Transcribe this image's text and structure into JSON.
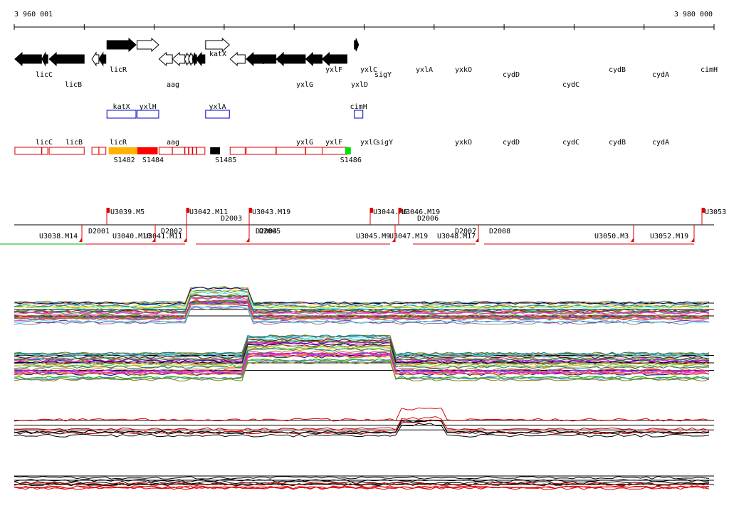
{
  "ruler": {
    "start_label": "3 960 001",
    "end_label": "3 980 000",
    "start_bp": 3960001,
    "end_bp": 3980000
  },
  "genes": [
    {
      "name": "licC",
      "strand": "-",
      "start": 3960020,
      "end": 3960780,
      "filled": true
    },
    {
      "name": "licB",
      "strand": "-",
      "start": 3960790,
      "end": 3960960,
      "filled": true
    },
    {
      "name": "licR",
      "strand": "-",
      "start": 3961000,
      "end": 3962000,
      "filled": true
    },
    {
      "name": "aag",
      "strand": "-",
      "start": 3962220,
      "end": 3962420,
      "filled": false
    },
    {
      "name": "",
      "strand": "-",
      "start": 3962420,
      "end": 3962620,
      "filled": true
    },
    {
      "name": "katX",
      "strand": "+",
      "start": 3962650,
      "end": 3963480,
      "filled": true
    },
    {
      "name": "yxlH",
      "strand": "+",
      "start": 3963510,
      "end": 3964130,
      "filled": false
    },
    {
      "name": "yxlG",
      "strand": "-",
      "start": 3964140,
      "end": 3964520,
      "filled": false
    },
    {
      "name": "yxlF",
      "strand": "-",
      "start": 3964520,
      "end": 3964880,
      "filled": false
    },
    {
      "name": "yxlC",
      "strand": "-",
      "start": 3964870,
      "end": 3964980,
      "filled": false
    },
    {
      "name": "yxlD",
      "strand": "-",
      "start": 3964980,
      "end": 3965090,
      "filled": false
    },
    {
      "name": "",
      "strand": "-",
      "start": 3965090,
      "end": 3965200,
      "filled": true
    },
    {
      "name": "sigY",
      "strand": "-",
      "start": 3965200,
      "end": 3965450,
      "filled": true
    },
    {
      "name": "yxlA",
      "strand": "+",
      "start": 3965470,
      "end": 3966150,
      "filled": false
    },
    {
      "name": "yxkO",
      "strand": "-",
      "start": 3966170,
      "end": 3966600,
      "filled": false
    },
    {
      "name": "cydD",
      "strand": "-",
      "start": 3966630,
      "end": 3967480,
      "filled": true
    },
    {
      "name": "cydC",
      "strand": "-",
      "start": 3967490,
      "end": 3968320,
      "filled": true
    },
    {
      "name": "cydB",
      "strand": "-",
      "start": 3968330,
      "end": 3968800,
      "filled": true
    },
    {
      "name": "cydA",
      "strand": "-",
      "start": 3968800,
      "end": 3969510,
      "filled": true
    },
    {
      "name": "cimH",
      "strand": "+",
      "start": 3969720,
      "end": 3969840,
      "filled": true
    }
  ],
  "gene_labels_row1": [
    "licC",
    "licR",
    "katX",
    "yxlH",
    "yxlF",
    "yxlC",
    "sigY",
    "yxlA",
    "yxkO",
    "cydD",
    "cydB",
    "cydA",
    "cimH"
  ],
  "gene_labels_row2": [
    "licB",
    "aag",
    "yxlG",
    "yxlD",
    "cydC"
  ],
  "highlight_genes": [
    {
      "name": "katX",
      "start": 3962650,
      "end": 3963480
    },
    {
      "name": "yxlH",
      "start": 3963510,
      "end": 3964130
    },
    {
      "name": "yxlA",
      "start": 3965470,
      "end": 3966150
    },
    {
      "name": "cimH",
      "start": 3969720,
      "end": 3969840
    }
  ],
  "track_genes": [
    "licC",
    "licB",
    "licR",
    "aag",
    "yxlG",
    "yxlF",
    "yxlC",
    "sigY",
    "yxkO",
    "cydD",
    "cydC",
    "cydB",
    "cydA"
  ],
  "segments": [
    {
      "name": "S1482",
      "color": "#ffb300",
      "start": 3962700,
      "end": 3963520
    },
    {
      "name": "S1484",
      "color": "#ff0000",
      "start": 3963520,
      "end": 3964100
    },
    {
      "name": "S1485",
      "color": "#000000",
      "start": 3965600,
      "end": 3965880
    },
    {
      "name": "S1486",
      "color": "#00e000",
      "start": 3969460,
      "end": 3969620
    }
  ],
  "upstream_labels": [
    "U3039.M5",
    "U3042.M11",
    "U3043.M19",
    "U3044.M6",
    "U3046.M19",
    "U3053",
    "U3038.M14",
    "U3040.M10",
    "U3041.M11",
    "U3045.M9",
    "U3047.M19",
    "U3048.M17",
    "U3050.M3",
    "U3052.M19"
  ],
  "downstream_labels": [
    "D2001",
    "D2002",
    "D2003",
    "D2004",
    "D2005",
    "D2006",
    "D2007",
    "D2008"
  ],
  "expression_tracks": 4,
  "colors": {
    "gene_fill": "#000000",
    "track_outline": "#dd0000",
    "highlight_outline": "#0000cc",
    "series_high": "#dd0000",
    "series_low": "#000000"
  }
}
